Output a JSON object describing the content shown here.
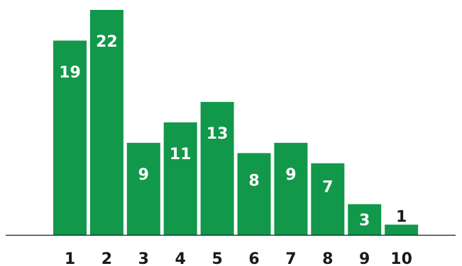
{
  "chart_data": {
    "type": "bar",
    "title": "",
    "xlabel": "",
    "ylabel": "",
    "categories": [
      "1",
      "2",
      "3",
      "4",
      "5",
      "6",
      "7",
      "8",
      "9",
      "10"
    ],
    "values": [
      19,
      22,
      9,
      11,
      13,
      8,
      9,
      7,
      3,
      1
    ],
    "ylim": [
      0,
      22
    ],
    "grid": false,
    "legend": "none",
    "data_labels": true
  },
  "colors": {
    "bar": "#12984a",
    "label_inside": "#ffffff",
    "label_outside": "#1a1a1a",
    "axis": "#1a1a1a",
    "background": "#ffffff"
  }
}
